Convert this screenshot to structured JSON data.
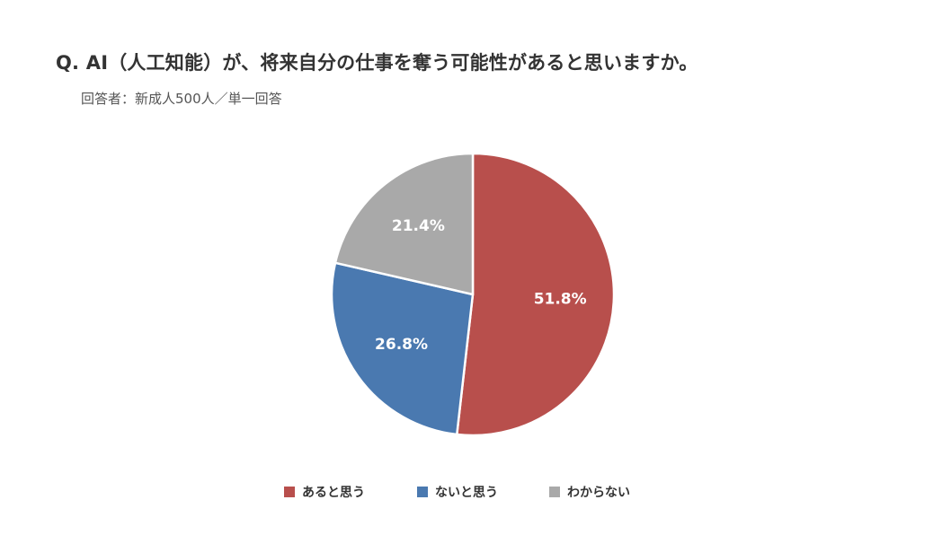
{
  "header": {
    "title": "Q. AI（人工知能）が、将来自分の仕事を奪う可能性があると思いますか。",
    "subtitle": "回答者：新成人500人／単一回答"
  },
  "chart_data": {
    "type": "pie",
    "unit": "%",
    "categories": [
      "あると思う",
      "ないと思う",
      "わからない"
    ],
    "values": [
      51.8,
      26.8,
      21.4
    ],
    "labels": [
      "51.8%",
      "26.8%",
      "21.4%"
    ],
    "colors": [
      "#B84F4C",
      "#4A79B0",
      "#A9A9A9"
    ],
    "start": "12 o'clock",
    "direction": "clockwise",
    "legend": "bottom"
  }
}
